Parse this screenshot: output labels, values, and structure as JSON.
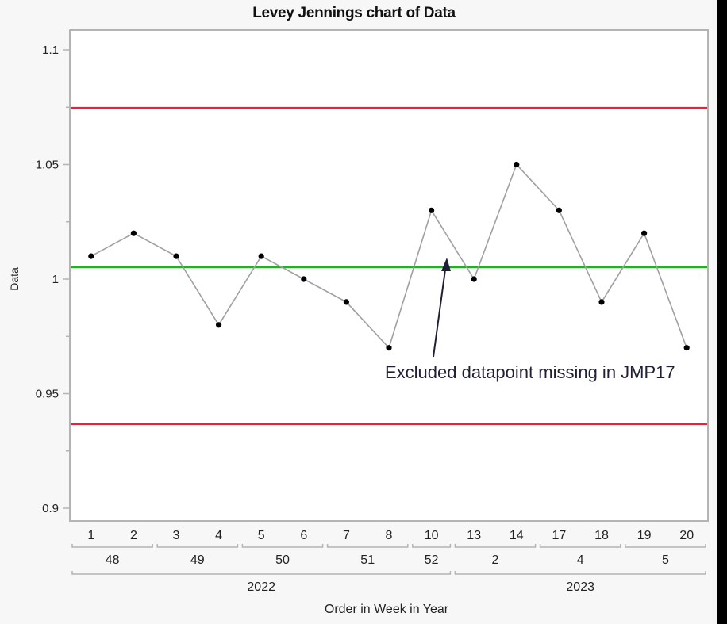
{
  "title": "Levey Jennings chart of Data",
  "colors": {
    "background": "#f7f7f7",
    "plot_bg": "#ffffff",
    "frame": "#b4b4b4",
    "control_limit": "#e8223a",
    "center_line": "#1eb41e",
    "series_line": "#a0a0a0",
    "marker": "#000000",
    "annotation": "#1f2035"
  },
  "annotation": {
    "text": "Excluded datapoint missing in JMP17",
    "arrow_icon": "arrow-up-icon"
  },
  "chart_data": {
    "type": "line",
    "title": "Levey Jennings chart of Data",
    "xlabel": "Order in Week in Year",
    "ylabel": "Data",
    "ylim": [
      0.891,
      1.109
    ],
    "yticks": [
      0.9,
      0.95,
      1,
      1.05,
      1.1
    ],
    "ytick_labels": [
      "0.9",
      "0.95",
      "1",
      "1.05",
      "1.1"
    ],
    "grid": false,
    "legend": null,
    "x_hierarchy": {
      "order": [
        "1",
        "2",
        "3",
        "4",
        "5",
        "6",
        "7",
        "8",
        "10",
        "13",
        "14",
        "17",
        "18",
        "19",
        "20"
      ],
      "week": [
        {
          "label": "48",
          "span": [
            0,
            1
          ]
        },
        {
          "label": "49",
          "span": [
            2,
            3
          ]
        },
        {
          "label": "50",
          "span": [
            4,
            5
          ]
        },
        {
          "label": "51",
          "span": [
            6,
            7
          ]
        },
        {
          "label": "52",
          "span": [
            8,
            8
          ]
        },
        {
          "label": "2",
          "span": [
            9,
            10
          ]
        },
        {
          "label": "4",
          "span": [
            11,
            12
          ]
        },
        {
          "label": "5",
          "span": [
            13,
            14
          ]
        }
      ],
      "year": [
        {
          "label": "2022",
          "span": [
            0,
            8
          ]
        },
        {
          "label": "2023",
          "span": [
            9,
            14
          ]
        }
      ]
    },
    "categories": [
      "1",
      "2",
      "3",
      "4",
      "5",
      "6",
      "7",
      "8",
      "10",
      "13",
      "14",
      "17",
      "18",
      "19",
      "20"
    ],
    "series": [
      {
        "name": "Data",
        "values": [
          1.01,
          1.02,
          1.01,
          0.98,
          1.01,
          1.0,
          0.99,
          0.97,
          1.03,
          1.0,
          1.05,
          1.03,
          0.99,
          1.02,
          0.97
        ]
      }
    ],
    "control_lines": {
      "ucl": 1.0747,
      "mean": 1.0052,
      "lcl": 0.9367
    },
    "annotations": [
      {
        "text": "Excluded datapoint missing in JMP17",
        "arrow_points_to": "between order 10 and 13 near center line"
      }
    ]
  }
}
